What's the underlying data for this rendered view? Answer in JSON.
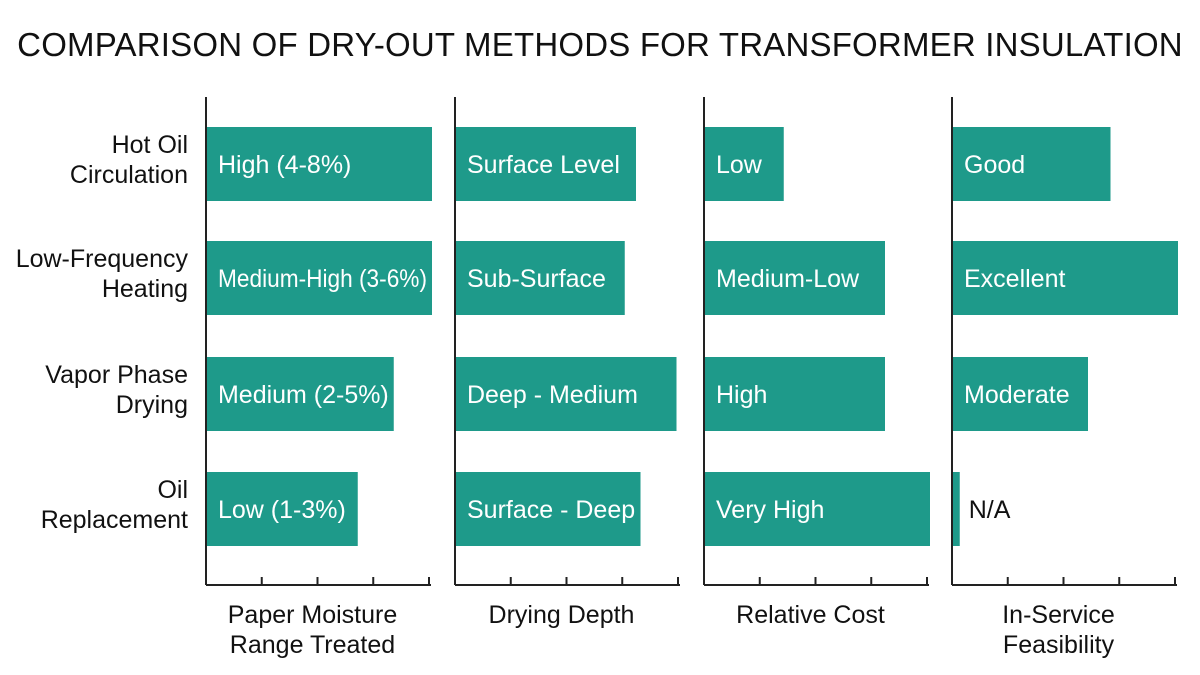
{
  "title": "COMPARISON OF DRY-OUT METHODS FOR TRANSFORMER INSULATION",
  "colors": {
    "bar": "#1e9a8a",
    "axis": "#222222",
    "text": "#111111"
  },
  "chart_data": {
    "type": "bar",
    "orientation": "horizontal",
    "categories": [
      "Hot Oil Circulation",
      "Low-Frequency Heating",
      "Vapor Phase Drying",
      "Oil Replacement"
    ],
    "category_label_lines": [
      [
        "Hot Oil",
        "Circulation"
      ],
      [
        "Low-Frequency",
        "Heating"
      ],
      [
        "Vapor Phase",
        "Drying"
      ],
      [
        "Oil",
        "Replacement"
      ]
    ],
    "panels": [
      {
        "title": "Paper Moisture Range Treated",
        "title_lines": [
          "Paper Moisture",
          "Range Treated"
        ],
        "values": [
          1.0,
          1.0,
          0.83,
          0.67
        ],
        "labels": [
          "High (4-8%)",
          "Medium-High (3-6%)",
          "Medium (2-5%)",
          "Low (1-3%)"
        ]
      },
      {
        "title": "Drying Depth",
        "title_lines": [
          "Drying Depth"
        ],
        "values": [
          0.8,
          0.75,
          0.98,
          0.82
        ],
        "labels": [
          "Surface Level",
          "Sub-Surface",
          "Deep - Medium",
          "Surface - Deep"
        ]
      },
      {
        "title": "Relative Cost",
        "title_lines": [
          "Relative Cost"
        ],
        "values": [
          0.35,
          0.8,
          0.8,
          1.0
        ],
        "labels": [
          "Low",
          "Medium-Low",
          "High",
          "Very High"
        ]
      },
      {
        "title": "In-Service Feasibility",
        "title_lines": [
          "In-Service",
          "Feasibility"
        ],
        "values": [
          0.7,
          1.0,
          0.6,
          0.03
        ],
        "labels": [
          "Good",
          "Excellent",
          "Moderate",
          "N/A"
        ]
      }
    ],
    "xlim": [
      0,
      1
    ],
    "grid": false,
    "legend": "none"
  }
}
